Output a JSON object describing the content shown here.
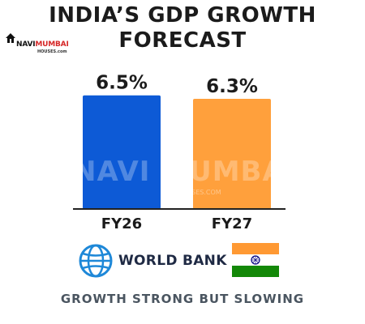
{
  "title_line1": "INDIA’S GDP GROWTH",
  "title_line2": "FORECAST",
  "logo": {
    "name_part1": "NAVI",
    "name_part2": "MUMBAI",
    "sub": "HOUSES.com",
    "icon": "house-icon",
    "color_part1": "#111111",
    "color_part2": "#d62828"
  },
  "watermark": {
    "text": "NAVI MUMBAI",
    "sub": "HOUSES.COM"
  },
  "source": {
    "text": "WORLD BANK",
    "icon": "globe-icon"
  },
  "flag": {
    "icon": "india-flag-icon",
    "colors": [
      "#ff9933",
      "#ffffff",
      "#138808"
    ],
    "wheel_color": "#000080"
  },
  "tagline": "GROWTH STRONG BUT SLOWING",
  "colors": {
    "bar1": "#0d5ad6",
    "bar2": "#ffa03c",
    "axis": "#222222",
    "text": "#1b1b1b"
  },
  "chart_data": {
    "type": "bar",
    "categories": [
      "FY26",
      "FY27"
    ],
    "values": [
      6.5,
      6.3
    ],
    "value_labels": [
      "6.5%",
      "6.3%"
    ],
    "title": "INDIA’S GDP GROWTH FORECAST",
    "xlabel": "",
    "ylabel": "",
    "ylim": [
      0,
      6.95
    ],
    "grid": false,
    "legend": "none"
  }
}
